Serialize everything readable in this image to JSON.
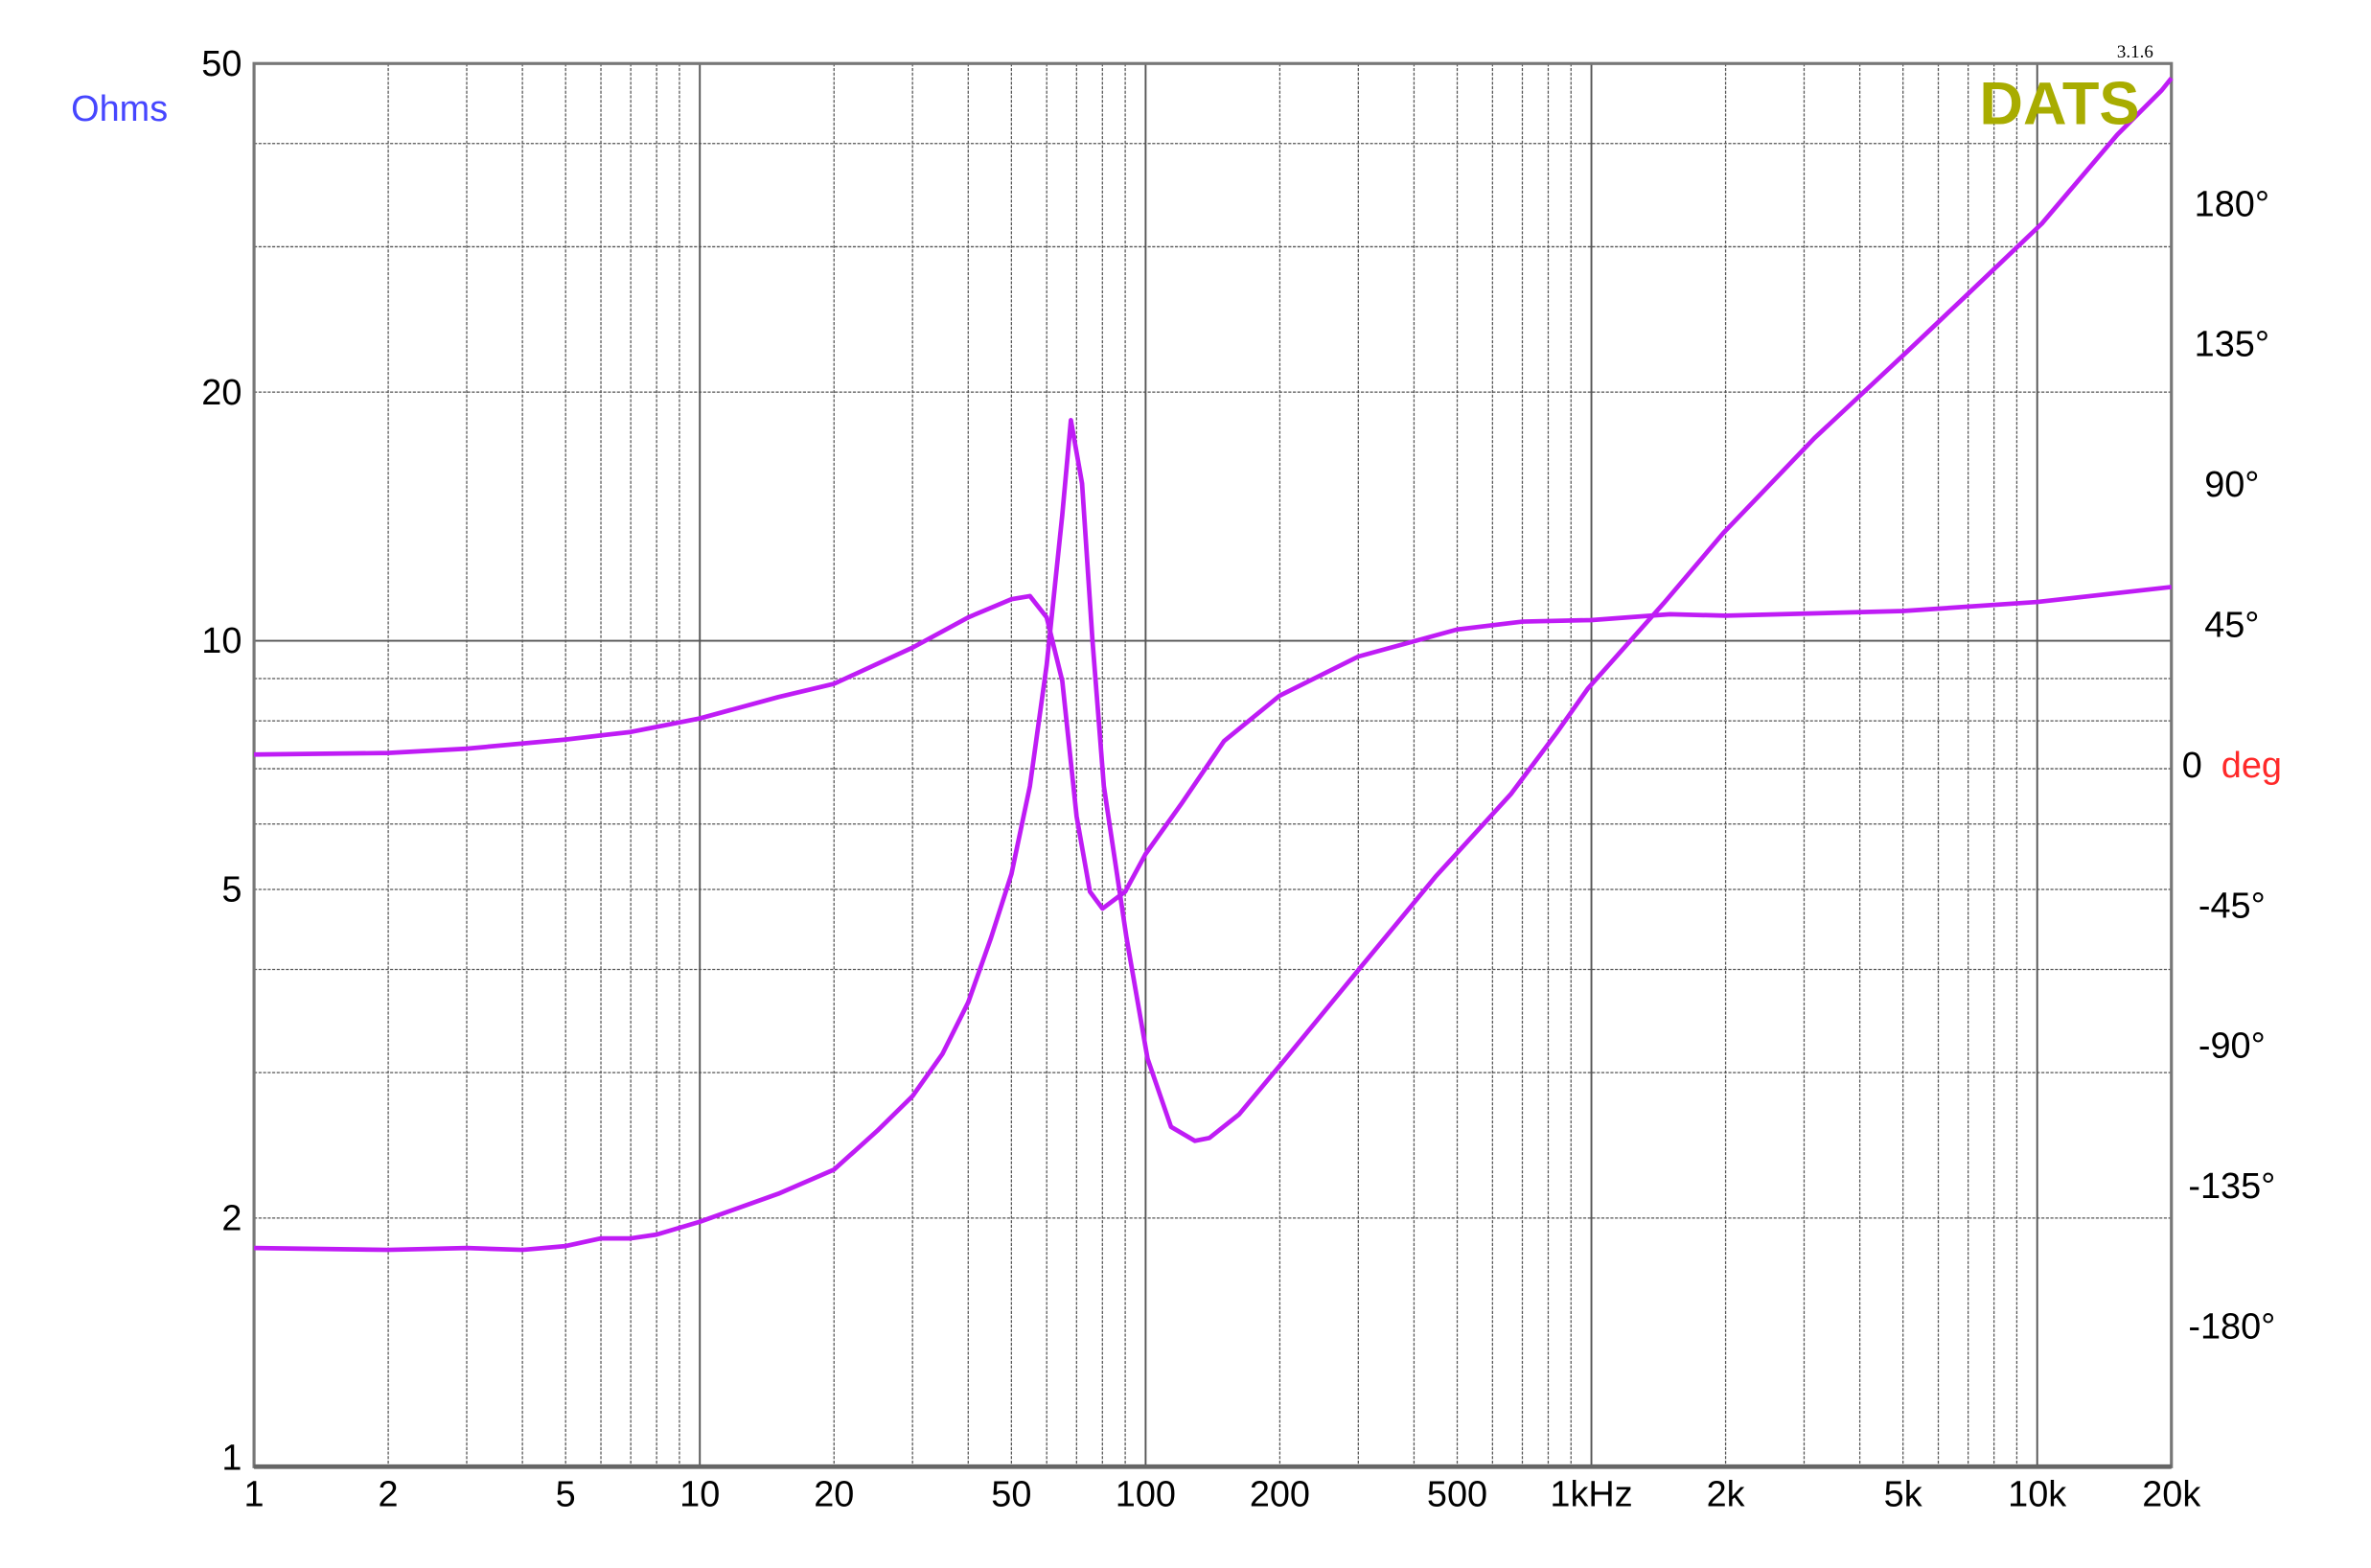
{
  "chart_data": {
    "type": "line",
    "version_label": "3.1.6",
    "logo_text": "DATS",
    "left_axis_label": "Ohms",
    "right_axis_label_value": "0",
    "right_axis_label_unit": "deg",
    "x_scale": "log",
    "xlim": [
      1,
      20000
    ],
    "left_ylim": [
      1,
      50
    ],
    "left_y_scale": "log",
    "right_ylim": [
      -225,
      225
    ],
    "grid": true,
    "x_ticks": [
      {
        "value": 1,
        "label": "1"
      },
      {
        "value": 2,
        "label": "2"
      },
      {
        "value": 5,
        "label": "5"
      },
      {
        "value": 10,
        "label": "10"
      },
      {
        "value": 20,
        "label": "20"
      },
      {
        "value": 50,
        "label": "50"
      },
      {
        "value": 100,
        "label": "100"
      },
      {
        "value": 200,
        "label": "200"
      },
      {
        "value": 500,
        "label": "500"
      },
      {
        "value": 1000,
        "label": "1kHz"
      },
      {
        "value": 2000,
        "label": "2k"
      },
      {
        "value": 5000,
        "label": "5k"
      },
      {
        "value": 10000,
        "label": "10k"
      },
      {
        "value": 20000,
        "label": "20k"
      }
    ],
    "left_ticks": [
      {
        "value": 1,
        "label": "1"
      },
      {
        "value": 2,
        "label": "2"
      },
      {
        "value": 5,
        "label": "5"
      },
      {
        "value": 10,
        "label": "10"
      },
      {
        "value": 20,
        "label": "20"
      },
      {
        "value": 50,
        "label": "50"
      }
    ],
    "right_ticks": [
      {
        "value": 180,
        "label": "180°"
      },
      {
        "value": 135,
        "label": "135°"
      },
      {
        "value": 90,
        "label": "90°"
      },
      {
        "value": 45,
        "label": "45°"
      },
      {
        "value": -45,
        "label": "-45°"
      },
      {
        "value": -90,
        "label": "-90°"
      },
      {
        "value": -135,
        "label": "-135°"
      },
      {
        "value": -180,
        "label": "-180°"
      }
    ],
    "colors": {
      "curve": "#bf1cf5",
      "logo": "#a8ac00",
      "ohms_label": "#4646ff",
      "deg_label": "#ff2a2a",
      "grid": "#555555"
    },
    "series": [
      {
        "axis": "left",
        "x": [
          1,
          2,
          3,
          4,
          5,
          6,
          7,
          8,
          10,
          15,
          20,
          25,
          30,
          35,
          40,
          45,
          50,
          55,
          60,
          65,
          68,
          72,
          76,
          80.6,
          90.6,
          101,
          114,
          129,
          139,
          162,
          206,
          303,
          447,
          661,
          836,
          981,
          1452,
          1975,
          3167,
          5068,
          6940,
          10240,
          15116,
          19030,
          20000
        ],
        "y": [
          1.84,
          1.83,
          1.84,
          1.83,
          1.85,
          1.89,
          1.89,
          1.91,
          1.98,
          2.14,
          2.29,
          2.55,
          2.81,
          3.16,
          3.65,
          4.37,
          5.22,
          6.67,
          9.35,
          14.2,
          18.5,
          15.5,
          10.0,
          6.67,
          4.37,
          3.12,
          2.58,
          2.48,
          2.5,
          2.67,
          3.12,
          4.02,
          5.18,
          6.53,
          7.74,
          8.75,
          11.1,
          13.5,
          17.6,
          22.3,
          26.2,
          32,
          41,
          46.4,
          48
        ]
      },
      {
        "axis": "right",
        "x": [
          1,
          2,
          3,
          5,
          7,
          10,
          15,
          20,
          30,
          40,
          50,
          55,
          60,
          65,
          70,
          75,
          80,
          90,
          100,
          120,
          150,
          200,
          300,
          500,
          700,
          1000,
          1500,
          2000,
          5000,
          10000,
          20000
        ],
        "y": [
          3.4,
          3.9,
          5.3,
          8.2,
          10.6,
          15,
          21.8,
          26.1,
          37.7,
          47.4,
          53.2,
          54.2,
          47.4,
          27,
          -16.5,
          -40.6,
          -46,
          -40.6,
          -28.5,
          -12.6,
          7.7,
          22.3,
          34.8,
          43.5,
          46,
          46.5,
          48.4,
          47.9,
          49.4,
          52.3,
          57.1
        ]
      }
    ]
  }
}
